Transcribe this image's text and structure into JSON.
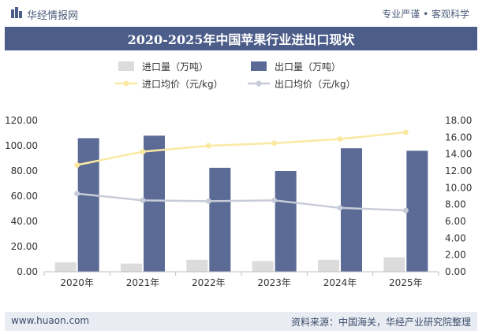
{
  "header": {
    "brand": "华经情报网",
    "tagline": "专业严谨 • 客观科学"
  },
  "title": "2020-2025年中国苹果行业进出口现状",
  "footer": {
    "url": "www.huaon.com",
    "source": "资料来源：中国海关，华经产业研究院整理"
  },
  "colors": {
    "import_bar": "#dcdcdc",
    "export_bar": "#5b6b96",
    "import_price_line": "#fbe9a3",
    "export_price_line": "#c8ccd8",
    "title_bg": "#4c5d8a"
  },
  "chart_data": {
    "type": "bar",
    "categories": [
      "2020年",
      "2021年",
      "2022年",
      "2023年",
      "2024年",
      "2025年"
    ],
    "series": [
      {
        "name": "进口量（万吨）",
        "type": "bar",
        "axis": "left",
        "values": [
          7.5,
          6.5,
          9.5,
          8.5,
          9.5,
          11.5
        ]
      },
      {
        "name": "出口量（万吨）",
        "type": "bar",
        "axis": "left",
        "values": [
          106,
          108,
          82.5,
          80,
          98,
          96
        ]
      },
      {
        "name": "进口均价（元/kg）",
        "type": "line",
        "axis": "right",
        "values": [
          12.7,
          14.3,
          15.0,
          15.3,
          15.8,
          16.6
        ]
      },
      {
        "name": "出口均价（元/kg）",
        "type": "line",
        "axis": "right",
        "values": [
          9.3,
          8.5,
          8.4,
          8.5,
          7.6,
          7.3
        ]
      }
    ],
    "y_left": {
      "min": 0,
      "max": 120,
      "step": 20,
      "tick_labels": [
        "0.00",
        "20.00",
        "40.00",
        "60.00",
        "80.00",
        "100.00",
        "120.00"
      ]
    },
    "y_right": {
      "min": 0,
      "max": 18,
      "step": 2,
      "tick_labels": [
        "0.00",
        "2.00",
        "4.00",
        "6.00",
        "8.00",
        "10.00",
        "12.00",
        "14.00",
        "16.00",
        "18.00"
      ]
    },
    "grid": false,
    "legend_position": "top"
  }
}
